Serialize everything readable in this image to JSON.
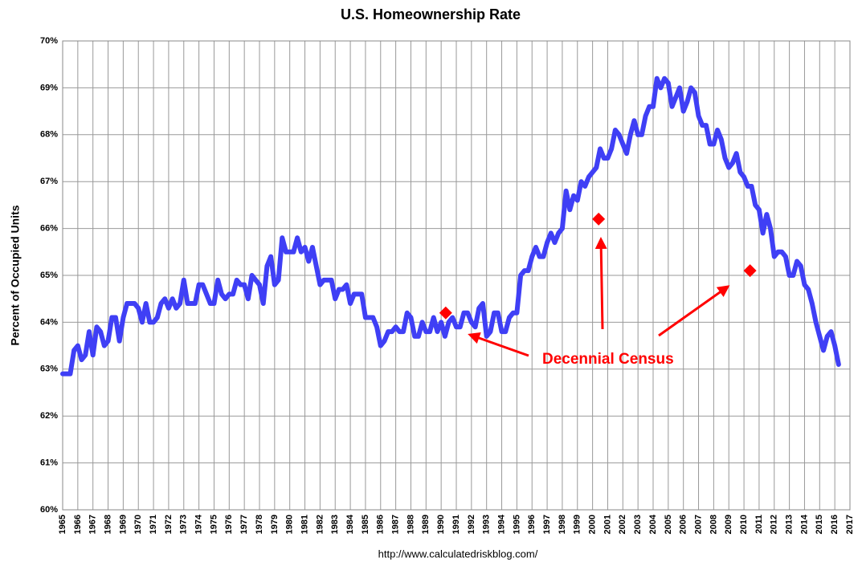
{
  "chart_data": {
    "type": "line",
    "title": "U.S. Homeownership Rate",
    "y_label": "Percent of Occupied Units",
    "source": "http://www.calculatedriskblog.com/",
    "annotation": "Decennial Census",
    "color": "#3f3ff5",
    "grid": true,
    "xlim": [
      1965,
      2017
    ],
    "xticks": [
      1965,
      1966,
      1967,
      1968,
      1969,
      1970,
      1971,
      1972,
      1973,
      1974,
      1975,
      1976,
      1977,
      1978,
      1979,
      1980,
      1981,
      1982,
      1983,
      1984,
      1985,
      1986,
      1987,
      1988,
      1989,
      1990,
      1991,
      1992,
      1993,
      1994,
      1995,
      1996,
      1997,
      1998,
      1999,
      2000,
      2001,
      2002,
      2003,
      2004,
      2005,
      2006,
      2007,
      2008,
      2009,
      2010,
      2011,
      2012,
      2013,
      2014,
      2015,
      2016,
      2017
    ],
    "ylim": [
      60,
      70
    ],
    "yticks": [
      {
        "value": 60,
        "label": "60%"
      },
      {
        "value": 61,
        "label": "61%"
      },
      {
        "value": 62,
        "label": "62%"
      },
      {
        "value": 63,
        "label": "63%"
      },
      {
        "value": 64,
        "label": "64%"
      },
      {
        "value": 65,
        "label": "65%"
      },
      {
        "value": 66,
        "label": "66%"
      },
      {
        "value": 67,
        "label": "67%"
      },
      {
        "value": 68,
        "label": "68%"
      },
      {
        "value": 69,
        "label": "69%"
      },
      {
        "value": 70,
        "label": "70%"
      }
    ],
    "x": [
      1965,
      1965.25,
      1965.5,
      1965.75,
      1966,
      1966.25,
      1966.5,
      1966.75,
      1967,
      1967.25,
      1967.5,
      1967.75,
      1968,
      1968.25,
      1968.5,
      1968.75,
      1969,
      1969.25,
      1969.5,
      1969.75,
      1970,
      1970.25,
      1970.5,
      1970.75,
      1971,
      1971.25,
      1971.5,
      1971.75,
      1972,
      1972.25,
      1972.5,
      1972.75,
      1973,
      1973.25,
      1973.5,
      1973.75,
      1974,
      1974.25,
      1974.5,
      1974.75,
      1975,
      1975.25,
      1975.5,
      1975.75,
      1976,
      1976.25,
      1976.5,
      1976.75,
      1977,
      1977.25,
      1977.5,
      1977.75,
      1978,
      1978.25,
      1978.5,
      1978.75,
      1979,
      1979.25,
      1979.5,
      1979.75,
      1980,
      1980.25,
      1980.5,
      1980.75,
      1981,
      1981.25,
      1981.5,
      1981.75,
      1982,
      1982.25,
      1982.5,
      1982.75,
      1983,
      1983.25,
      1983.5,
      1983.75,
      1984,
      1984.25,
      1984.5,
      1984.75,
      1985,
      1985.25,
      1985.5,
      1985.75,
      1986,
      1986.25,
      1986.5,
      1986.75,
      1987,
      1987.25,
      1987.5,
      1987.75,
      1988,
      1988.25,
      1988.5,
      1988.75,
      1989,
      1989.25,
      1989.5,
      1989.75,
      1990,
      1990.25,
      1990.5,
      1990.75,
      1991,
      1991.25,
      1991.5,
      1991.75,
      1992,
      1992.25,
      1992.5,
      1992.75,
      1993,
      1993.25,
      1993.5,
      1993.75,
      1994,
      1994.25,
      1994.5,
      1994.75,
      1995,
      1995.25,
      1995.5,
      1995.75,
      1996,
      1996.25,
      1996.5,
      1996.75,
      1997,
      1997.25,
      1997.5,
      1997.75,
      1998,
      1998.25,
      1998.5,
      1998.75,
      1999,
      1999.25,
      1999.5,
      1999.75,
      2000,
      2000.25,
      2000.5,
      2000.75,
      2001,
      2001.25,
      2001.5,
      2001.75,
      2002,
      2002.25,
      2002.5,
      2002.75,
      2003,
      2003.25,
      2003.5,
      2003.75,
      2004,
      2004.25,
      2004.5,
      2004.75,
      2005,
      2005.25,
      2005.5,
      2005.75,
      2006,
      2006.25,
      2006.5,
      2006.75,
      2007,
      2007.25,
      2007.5,
      2007.75,
      2008,
      2008.25,
      2008.5,
      2008.75,
      2009,
      2009.25,
      2009.5,
      2009.75,
      2010,
      2010.25,
      2010.5,
      2010.75,
      2011,
      2011.25,
      2011.5,
      2011.75,
      2012,
      2012.25,
      2012.5,
      2012.75,
      2013,
      2013.25,
      2013.5,
      2013.75,
      2014,
      2014.25,
      2014.5,
      2014.75,
      2015,
      2015.25,
      2015.5,
      2015.75,
      2016,
      2016.25
    ],
    "values": [
      62.9,
      62.9,
      62.9,
      63.4,
      63.5,
      63.2,
      63.3,
      63.8,
      63.3,
      63.9,
      63.8,
      63.5,
      63.6,
      64.1,
      64.1,
      63.6,
      64.1,
      64.4,
      64.4,
      64.4,
      64.3,
      64.0,
      64.4,
      64.0,
      64.0,
      64.1,
      64.4,
      64.5,
      64.3,
      64.5,
      64.3,
      64.4,
      64.9,
      64.4,
      64.4,
      64.4,
      64.8,
      64.8,
      64.6,
      64.4,
      64.4,
      64.9,
      64.6,
      64.5,
      64.6,
      64.6,
      64.9,
      64.8,
      64.8,
      64.5,
      65.0,
      64.9,
      64.8,
      64.4,
      65.2,
      65.4,
      64.8,
      64.9,
      65.8,
      65.5,
      65.5,
      65.5,
      65.8,
      65.5,
      65.6,
      65.3,
      65.6,
      65.2,
      64.8,
      64.9,
      64.9,
      64.9,
      64.5,
      64.7,
      64.7,
      64.8,
      64.4,
      64.6,
      64.6,
      64.6,
      64.1,
      64.1,
      64.1,
      63.9,
      63.5,
      63.6,
      63.8,
      63.8,
      63.9,
      63.8,
      63.8,
      64.2,
      64.1,
      63.7,
      63.7,
      64.0,
      63.8,
      63.8,
      64.1,
      63.8,
      64.0,
      63.7,
      64.0,
      64.1,
      63.9,
      63.9,
      64.2,
      64.2,
      64.0,
      63.9,
      64.3,
      64.4,
      63.7,
      63.8,
      64.2,
      64.2,
      63.8,
      63.8,
      64.1,
      64.2,
      64.2,
      65.0,
      65.1,
      65.1,
      65.4,
      65.6,
      65.4,
      65.4,
      65.7,
      65.9,
      65.7,
      65.9,
      66.0,
      66.8,
      66.4,
      66.7,
      66.6,
      67.0,
      66.9,
      67.1,
      67.2,
      67.3,
      67.7,
      67.5,
      67.5,
      67.7,
      68.1,
      68.0,
      67.8,
      67.6,
      68.0,
      68.3,
      68.0,
      68.0,
      68.4,
      68.6,
      68.6,
      69.2,
      69.0,
      69.2,
      69.1,
      68.6,
      68.8,
      69.0,
      68.5,
      68.7,
      69.0,
      68.9,
      68.4,
      68.2,
      68.2,
      67.8,
      67.8,
      68.1,
      67.9,
      67.5,
      67.3,
      67.4,
      67.6,
      67.2,
      67.1,
      66.9,
      66.9,
      66.5,
      66.4,
      65.9,
      66.3,
      66.0,
      65.4,
      65.5,
      65.5,
      65.4,
      65.0,
      65.0,
      65.3,
      65.2,
      64.8,
      64.7,
      64.4,
      64.0,
      63.7,
      63.4,
      63.7,
      63.8,
      63.5,
      63.1
    ],
    "markers": {
      "color": "#ff0000",
      "x": [
        1990.3,
        2000.4,
        2010.4
      ],
      "values": [
        64.2,
        66.2,
        65.1
      ]
    }
  }
}
